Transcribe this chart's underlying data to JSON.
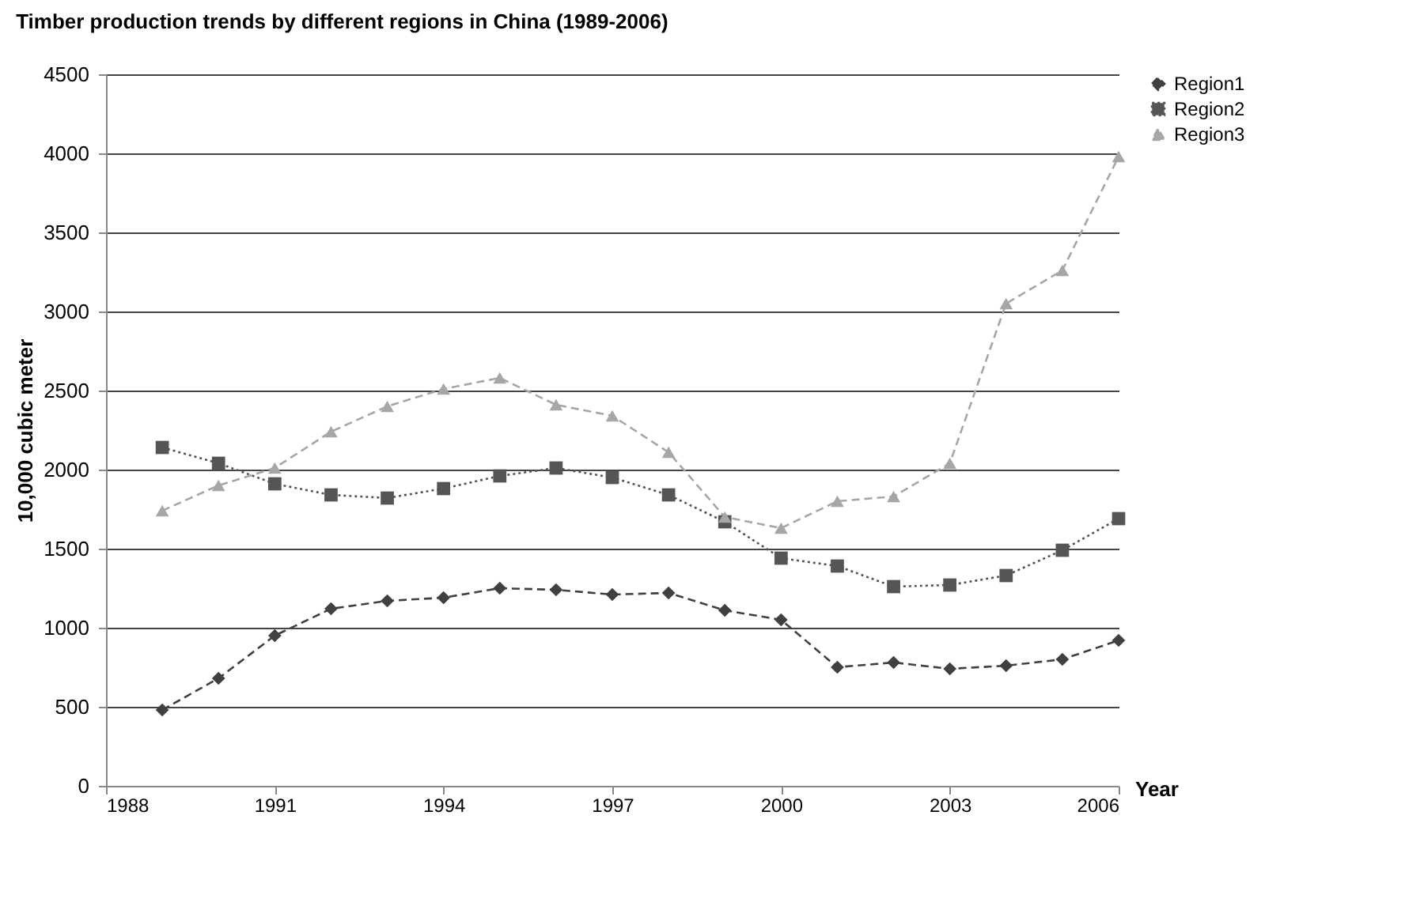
{
  "chart_data": {
    "type": "line",
    "title": "Timber production trends by different regions in China (1989-2006)",
    "xlabel": "Year",
    "ylabel": "10,000 cubic meter",
    "x": [
      1989,
      1990,
      1991,
      1992,
      1993,
      1994,
      1995,
      1996,
      1997,
      1998,
      1999,
      2000,
      2001,
      2002,
      2003,
      2004,
      2005,
      2006
    ],
    "series": [
      {
        "name": "Region1",
        "color": "#404040",
        "marker": "diamond",
        "line_style": "dashed",
        "values": [
          480,
          680,
          950,
          1120,
          1170,
          1190,
          1250,
          1240,
          1210,
          1220,
          1110,
          1050,
          750,
          780,
          740,
          760,
          800,
          920
        ]
      },
      {
        "name": "Region2",
        "color": "#555555",
        "marker": "square",
        "line_style": "dotted",
        "values": [
          2140,
          2040,
          1910,
          1840,
          1820,
          1880,
          1960,
          2010,
          1950,
          1840,
          1670,
          1440,
          1390,
          1260,
          1270,
          1330,
          1490,
          1690
        ]
      },
      {
        "name": "Region3",
        "color": "#a6a6a6",
        "marker": "triangle",
        "line_style": "dashed",
        "values": [
          1740,
          1900,
          2010,
          2240,
          2400,
          2510,
          2580,
          2410,
          2340,
          2110,
          1700,
          1630,
          1800,
          1830,
          2040,
          3050,
          3260,
          3980
        ]
      }
    ],
    "xlim": [
      1988,
      2006
    ],
    "xticks": [
      1988,
      1991,
      1994,
      1997,
      2000,
      2003,
      2006
    ],
    "ylim": [
      0,
      4500
    ],
    "yticks": [
      0,
      500,
      1000,
      1500,
      2000,
      2500,
      3000,
      3500,
      4000,
      4500
    ],
    "grid": "y",
    "legend": "right"
  }
}
